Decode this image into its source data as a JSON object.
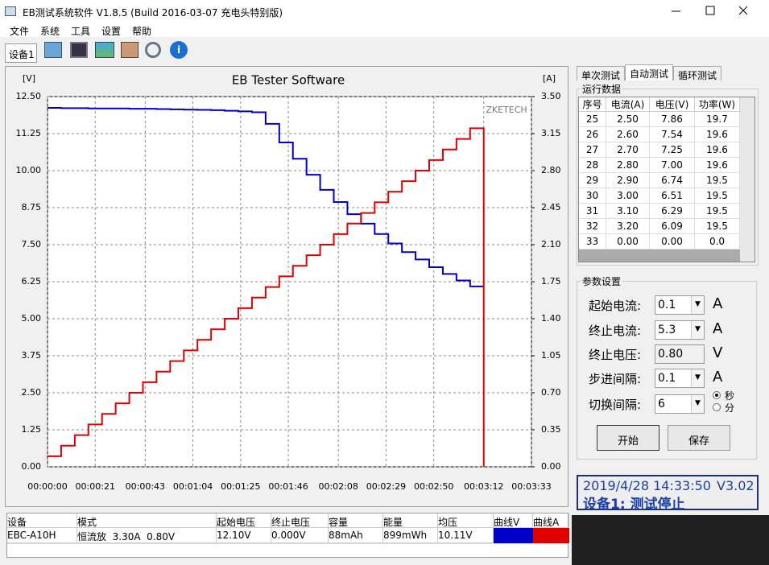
{
  "window": {
    "title": "EB测试系统软件 V1.8.5 (Build 2016-03-07 充电头特别版)"
  },
  "menu": [
    "文件",
    "系统",
    "工具",
    "设置",
    "帮助"
  ],
  "device_tab": "设备1",
  "chart_data": {
    "type": "line",
    "step": true,
    "grid": true,
    "title": "EB Tester Software",
    "y_label": "[V]",
    "y2_label": "[A]",
    "annotation": "ZKETECH",
    "x": [
      0,
      6,
      12,
      18,
      24,
      30,
      36,
      42,
      48,
      54,
      60,
      66,
      72,
      78,
      84,
      90,
      96,
      102,
      108,
      114,
      120,
      126,
      132,
      138,
      144,
      150,
      156,
      162,
      168,
      174,
      180,
      186,
      192
    ],
    "xlim": [
      0,
      213
    ],
    "xticks": [
      {
        "value": 0,
        "label": "00:00:00"
      },
      {
        "value": 21,
        "label": "00:00:21"
      },
      {
        "value": 43,
        "label": "00:00:43"
      },
      {
        "value": 64,
        "label": "00:01:04"
      },
      {
        "value": 85,
        "label": "00:01:25"
      },
      {
        "value": 106,
        "label": "00:01:46"
      },
      {
        "value": 128,
        "label": "00:02:08"
      },
      {
        "value": 149,
        "label": "00:02:29"
      },
      {
        "value": 170,
        "label": "00:02:50"
      },
      {
        "value": 192,
        "label": "00:03:12"
      },
      {
        "value": 213,
        "label": "00:03:33"
      }
    ],
    "ylim": [
      0,
      12.5
    ],
    "yticks": [
      {
        "value": 0,
        "label": "0.00"
      },
      1.25,
      {
        "value": 2.5,
        "label": "2.50"
      },
      3.75,
      {
        "value": 5,
        "label": "5.00"
      },
      6.25,
      {
        "value": 7.5,
        "label": "7.50"
      },
      8.75,
      {
        "value": 10,
        "label": "10.00"
      },
      11.25,
      {
        "value": 12.5,
        "label": "12.50"
      }
    ],
    "y2lim": [
      0,
      3.5
    ],
    "y2ticks": [
      {
        "value": 0,
        "label": "0.00"
      },
      0.35,
      {
        "value": 0.7,
        "label": "0.70"
      },
      1.05,
      {
        "value": 1.4,
        "label": "1.40"
      },
      1.75,
      {
        "value": 2.1,
        "label": "2.10"
      },
      2.45,
      {
        "value": 2.8,
        "label": "2.80"
      },
      3.15,
      {
        "value": 3.5,
        "label": "3.50"
      }
    ],
    "series": [
      {
        "color": "#0000c8",
        "values": [
          12.12,
          12.11,
          12.11,
          12.1,
          12.1,
          12.1,
          12.09,
          12.09,
          12.08,
          12.07,
          12.06,
          12.05,
          12.04,
          12.02,
          12.0,
          11.97,
          11.58,
          10.95,
          10.4,
          9.86,
          9.35,
          8.94,
          8.53,
          8.21,
          7.86,
          7.54,
          7.25,
          7.0,
          6.74,
          6.51,
          6.29,
          6.09,
          null
        ]
      },
      {
        "color": "#e00000",
        "axis": "y2",
        "values": [
          0.1,
          0.2,
          0.3,
          0.4,
          0.5,
          0.6,
          0.7,
          0.8,
          0.9,
          1.0,
          1.1,
          1.2,
          1.3,
          1.4,
          1.5,
          1.6,
          1.7,
          1.8,
          1.9,
          2.0,
          2.1,
          2.2,
          2.3,
          2.4,
          2.5,
          2.6,
          2.7,
          2.8,
          2.9,
          3.0,
          3.1,
          3.2,
          0
        ]
      }
    ]
  },
  "tabs": [
    "单次测试",
    "自动测试",
    "循环测试"
  ],
  "run_data": {
    "title": "运行数据",
    "headers": [
      "序号",
      "电流(A)",
      "电压(V)",
      "功率(W)"
    ],
    "rows": [
      [
        "25",
        "2.50",
        "7.86",
        "19.7"
      ],
      [
        "26",
        "2.60",
        "7.54",
        "19.6"
      ],
      [
        "27",
        "2.70",
        "7.25",
        "19.6"
      ],
      [
        "28",
        "2.80",
        "7.00",
        "19.6"
      ],
      [
        "29",
        "2.90",
        "6.74",
        "19.5"
      ],
      [
        "30",
        "3.00",
        "6.51",
        "19.5"
      ],
      [
        "31",
        "3.10",
        "6.29",
        "19.5"
      ],
      [
        "32",
        "3.20",
        "6.09",
        "19.5"
      ],
      [
        "33",
        "0.00",
        "0.00",
        "0.0"
      ]
    ]
  },
  "params": {
    "title": "参数设置",
    "fields": [
      {
        "label": "起始电流:",
        "value": "0.1",
        "unit": "A",
        "dropdown": true
      },
      {
        "label": "终止电流:",
        "value": "5.3",
        "unit": "A",
        "dropdown": true
      },
      {
        "label": "终止电压:",
        "value": "0.80",
        "unit": "V",
        "dropdown": false
      },
      {
        "label": "步进间隔:",
        "value": "0.1",
        "unit": "A",
        "dropdown": true
      },
      {
        "label": "切换间隔:",
        "value": "6",
        "units": [
          "秒",
          "分"
        ],
        "dropdown": true
      }
    ],
    "buttons": [
      "开始",
      "保存"
    ]
  },
  "status": {
    "datetime": "2019/4/28 14:33:50",
    "version": "V3.02",
    "state": "设备1: 测试停止"
  },
  "summary": {
    "headers": [
      "设备",
      "模式",
      "起始电压",
      "终止电压",
      "容量",
      "能量",
      "均压",
      "曲线V",
      "曲线A"
    ],
    "rows": [
      [
        "EBC-A10H",
        "恒流放  3.30A  0.80V",
        "12.10V",
        "0.000V",
        "88mAh",
        "899mWh",
        "10.11V"
      ]
    ]
  }
}
